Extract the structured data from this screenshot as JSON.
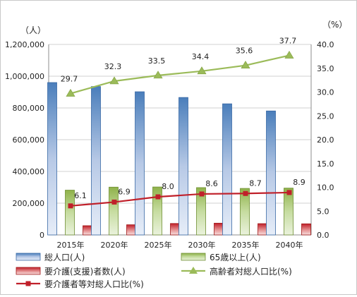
{
  "chart_data": {
    "type": "bar",
    "categories": [
      "2015年",
      "2020年",
      "2025年",
      "2030年",
      "2035年",
      "2040年"
    ],
    "left_axis": {
      "unit": "（人）",
      "ylim": [
        0,
        1200000
      ],
      "ticks": [
        "0",
        "200,000",
        "400,000",
        "600,000",
        "800,000",
        "1,000,000",
        "1,200,000"
      ]
    },
    "right_axis": {
      "unit": "（%）",
      "ylim": [
        0,
        40
      ],
      "ticks": [
        "0.0",
        "5.0",
        "10.0",
        "15.0",
        "20.0",
        "25.0",
        "30.0",
        "35.0",
        "40.0"
      ]
    },
    "grid": true,
    "legend_position": "bottom",
    "series": [
      {
        "name": "総人口(人)",
        "kind": "bar",
        "axis": "left",
        "color": "#4f81bd",
        "values": [
          960000,
          935000,
          902000,
          866000,
          826000,
          781000
        ]
      },
      {
        "name": "65歳以上(人)",
        "kind": "bar",
        "axis": "left",
        "color": "#9bbb59",
        "values": [
          282000,
          301000,
          302000,
          298000,
          293000,
          295000
        ]
      },
      {
        "name": "要介護(支援)者数(人)",
        "kind": "bar",
        "axis": "left",
        "color": "#c00000",
        "values": [
          58000,
          64000,
          72000,
          74000,
          71000,
          70000
        ]
      },
      {
        "name": "高齢者対総人口比(%)",
        "kind": "line",
        "axis": "right",
        "color": "#9bbb59",
        "values": [
          29.7,
          32.3,
          33.5,
          34.4,
          35.6,
          37.7
        ],
        "labels": [
          "29.7",
          "32.3",
          "33.5",
          "34.4",
          "35.6",
          "37.7"
        ]
      },
      {
        "name": "要介護者等対総人口比(%)",
        "kind": "line",
        "axis": "right",
        "color": "#c00000",
        "values": [
          6.1,
          6.9,
          8.0,
          8.6,
          8.7,
          8.9
        ],
        "labels": [
          "6.1",
          "6.9",
          "8.0",
          "8.6",
          "8.7",
          "8.9"
        ]
      }
    ]
  }
}
